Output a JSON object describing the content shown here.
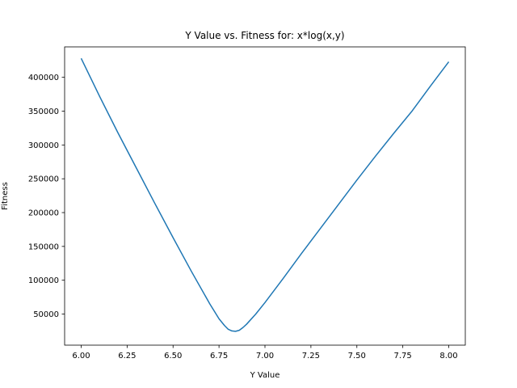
{
  "chart_data": {
    "type": "line",
    "title": "Y Value vs. Fitness for: x*log(x,y)",
    "xlabel": "Y Value",
    "ylabel": "Fitness",
    "xlim": [
      5.91,
      8.09
    ],
    "ylim": [
      4000,
      445000
    ],
    "xticks": [
      6.0,
      6.25,
      6.5,
      6.75,
      7.0,
      7.25,
      7.5,
      7.75,
      8.0
    ],
    "xtick_labels": [
      "6.00",
      "6.25",
      "6.50",
      "6.75",
      "7.00",
      "7.25",
      "7.50",
      "7.75",
      "8.00"
    ],
    "yticks": [
      50000,
      100000,
      150000,
      200000,
      250000,
      300000,
      350000,
      400000
    ],
    "ytick_labels": [
      "50000",
      "100000",
      "150000",
      "200000",
      "250000",
      "300000",
      "350000",
      "400000"
    ],
    "grid": false,
    "series": [
      {
        "color": "#1f77b4",
        "x": [
          6.0,
          6.1,
          6.2,
          6.3,
          6.4,
          6.5,
          6.6,
          6.7,
          6.75,
          6.78,
          6.8,
          6.82,
          6.84,
          6.86,
          6.88,
          6.9,
          6.95,
          7.0,
          7.1,
          7.2,
          7.3,
          7.4,
          7.5,
          7.6,
          7.7,
          7.8,
          7.9,
          8.0
        ],
        "y": [
          428000,
          372000,
          318000,
          266000,
          214000,
          163000,
          113000,
          65000,
          43000,
          33000,
          27500,
          25000,
          24500,
          26000,
          30000,
          35000,
          50000,
          67000,
          103000,
          140000,
          176000,
          212000,
          248000,
          283000,
          317000,
          350000,
          387000,
          423000
        ]
      }
    ]
  }
}
